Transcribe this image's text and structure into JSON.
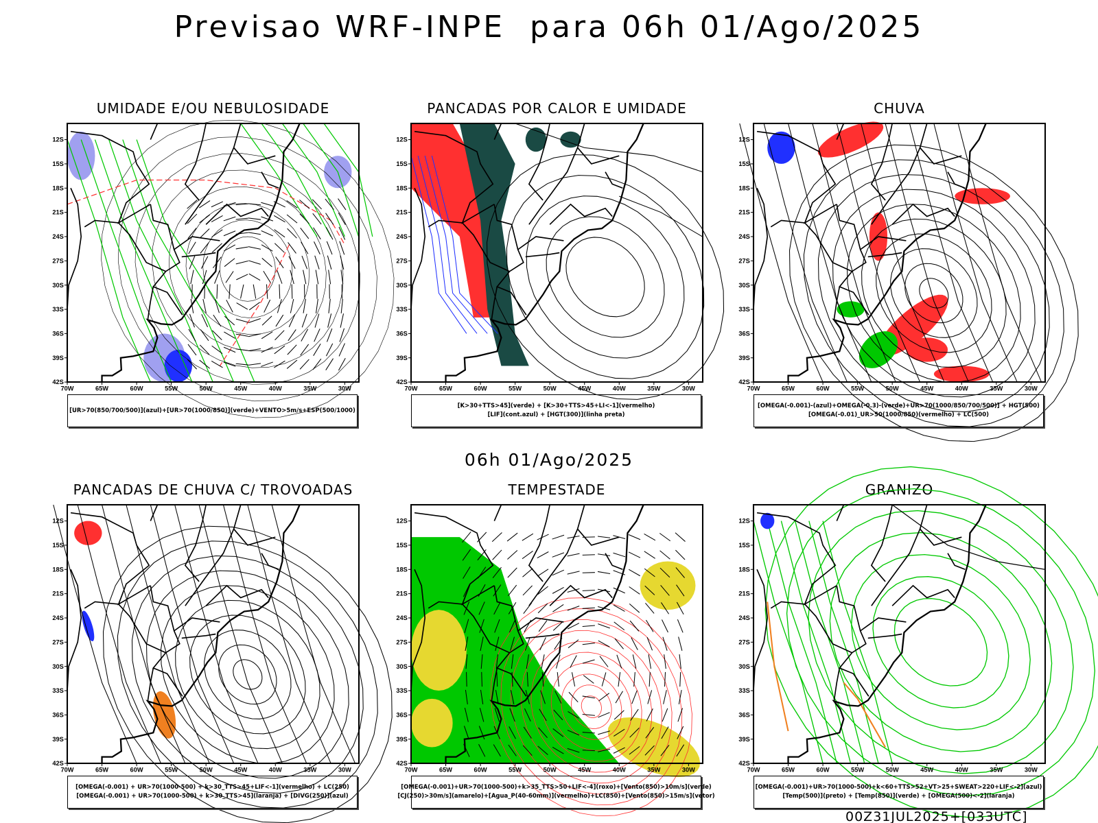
{
  "title": "Previsao WRF-INPE  para 06h 01/Ago/2025",
  "mid_label": "06h 01/Ago/2025",
  "footer": "00Z31JUL2025+[033UTC]",
  "axes": {
    "lat_ticks": [
      "12S",
      "15S",
      "18S",
      "21S",
      "24S",
      "27S",
      "30S",
      "33S",
      "36S",
      "39S",
      "42S"
    ],
    "lon_ticks": [
      "70W",
      "65W",
      "60W",
      "55W",
      "50W",
      "45W",
      "40W",
      "35W",
      "30W"
    ]
  },
  "colors": {
    "azul": "#2030ff",
    "verde": "#00c800",
    "vermelho": "#ff3030",
    "laranja": "#f08020",
    "amarelo": "#e6d830",
    "lilas": "#a0a0f0",
    "verde_escuro": "#1a4a44"
  },
  "panels": [
    {
      "title": "UMIDADE E/OU NEBULOSIDADE",
      "legend": [
        "[UR>70(850/700/500)](azul)+[UR>70(1000/850)](verde)+VENTO>5m/s+ESP(500/1000)"
      ]
    },
    {
      "title": "PANCADAS POR CALOR E UMIDADE",
      "legend": [
        "[K>30+TTS>45](verde) + [K>30+TTS>45+LI<-1](vermelho)",
        "[LIF](cont.azul) + [HGT(300)](linha preta)"
      ]
    },
    {
      "title": "CHUVA",
      "legend": [
        "[OMEGA(-0.001)-(azul)+OMEGA(-0.3)-(verde)+UR>70(1000/850/700/500)] + HGT(500)",
        "[OMEGA(-0.01)_UR>50(1000/850)(vermelho) + LC(500)"
      ]
    },
    {
      "title": "PANCADAS DE CHUVA C/ TROVOADAS",
      "legend": [
        "[OMEGA(-0.001) + UR>70(1000-500) + k>30_TTS>45+LIF<-1](vermelho) + LC(250)",
        "[OMEGA(-0.001) + UR>70(1000-500) + k>30_TTS>45](laranja) + [DIVG(250)](azul)"
      ]
    },
    {
      "title": "TEMPESTADE",
      "legend": [
        "[OMEGA(-0.001)+UR>70(1000-500)+k>35_TTS>50+LIF<-4](roxo)+[Vento(850)>10m/s](verde)",
        "[CJ(250)>30m/s](amarelo)+[Agua_P(40-60mm)](vermelho)+LC(850)+[Vento(850)>15m/s](vetor)"
      ]
    },
    {
      "title": "GRANIZO",
      "legend": [
        "[OMEGA(-0.001)+UR>70(1000-500)+k<60+TTS>52+VT>25+SWEAT>220+LIF<-2](azul)",
        "[Temp(500)](preto) + [Temp(850)](verde) + [OMEGA(500)<-2](laranja)"
      ]
    }
  ]
}
